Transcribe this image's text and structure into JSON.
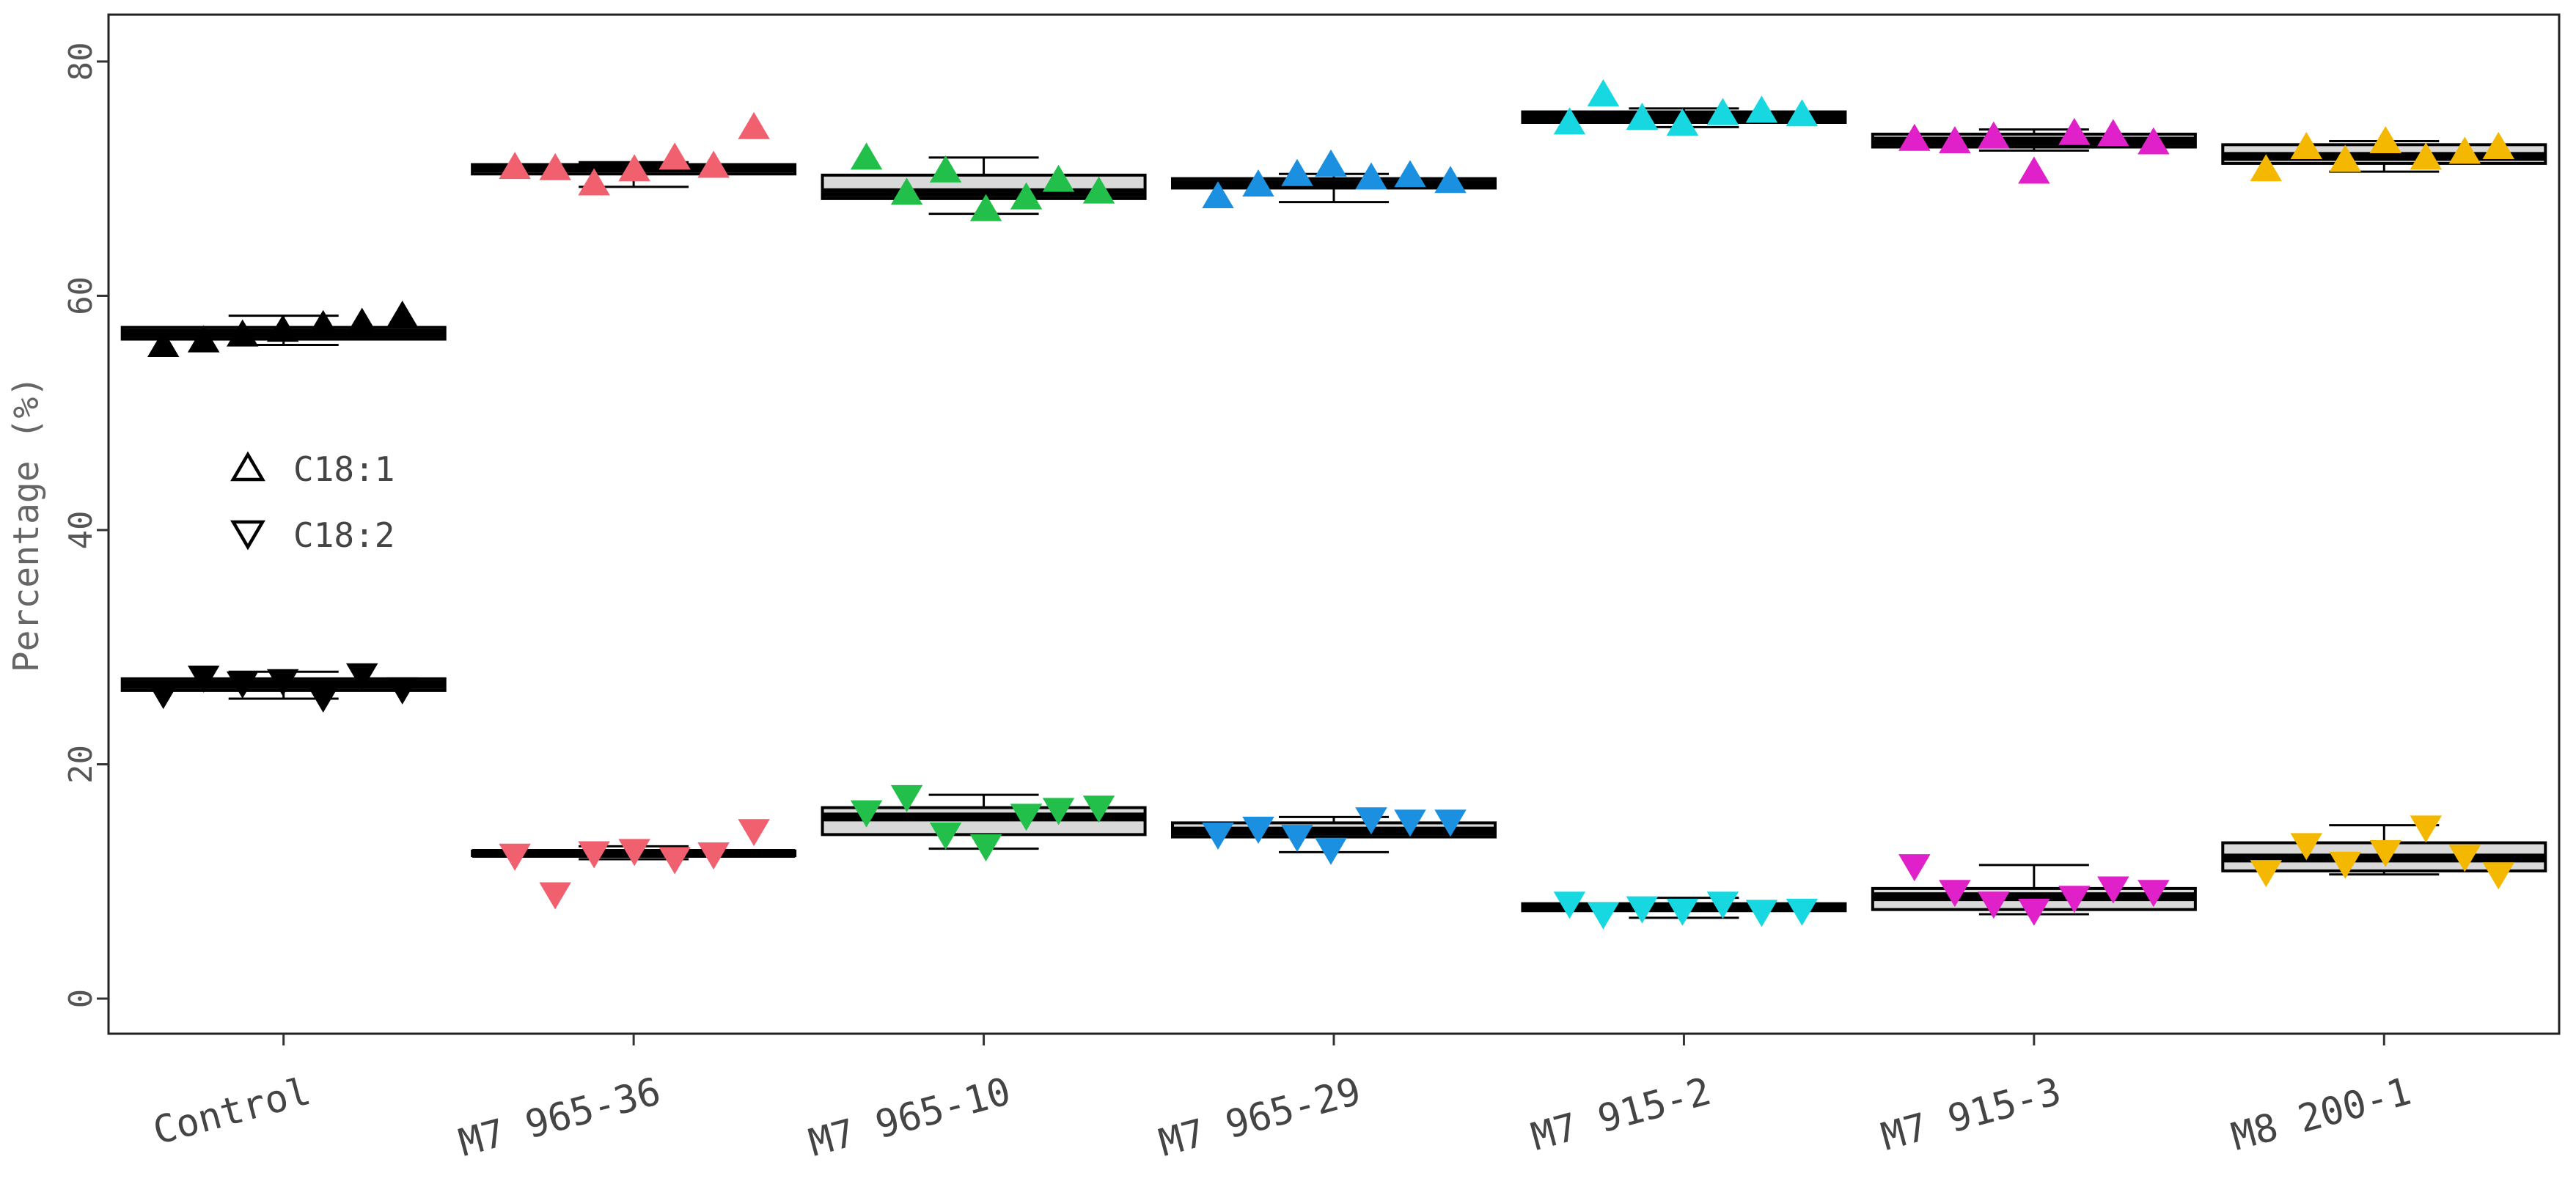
{
  "chart_data": {
    "type": "boxplot",
    "title": "",
    "xlabel": "",
    "ylabel": "Percentage (%)",
    "ylim": [
      -3,
      84
    ],
    "yticks": [
      0,
      20,
      40,
      60,
      80
    ],
    "y_tick_labels": [
      "0",
      "20",
      "40",
      "60",
      "80"
    ],
    "categories": [
      "Control",
      "M7 965-36",
      "M7 965-10",
      "M7 965-29",
      "M7 915-2",
      "M7 915-3",
      "M8 200-1"
    ],
    "category_colors": [
      "#000000",
      "#f0606e",
      "#22c04a",
      "#1b8fe0",
      "#17d8e0",
      "#e020c8",
      "#f5b800"
    ],
    "grid": false,
    "legend": {
      "position": "inside-left",
      "entries": [
        {
          "label": "C18:1",
          "marker": "triangle-up-open-icon"
        },
        {
          "label": "C18:2",
          "marker": "triangle-down-open-icon"
        }
      ]
    },
    "series": [
      {
        "name": "C18:1",
        "marker": "triangle-up",
        "boxes": [
          {
            "min": 55.8,
            "q1": 56.3,
            "median": 56.8,
            "q3": 57.3,
            "max": 58.3
          },
          {
            "min": 69.3,
            "q1": 70.4,
            "median": 70.9,
            "q3": 71.2,
            "max": 71.4
          },
          {
            "min": 67.0,
            "q1": 68.3,
            "median": 68.8,
            "q3": 70.3,
            "max": 71.8
          },
          {
            "min": 68.0,
            "q1": 69.2,
            "median": 69.5,
            "q3": 70.0,
            "max": 70.4
          },
          {
            "min": 74.4,
            "q1": 74.8,
            "median": 75.3,
            "q3": 75.7,
            "max": 76.0
          },
          {
            "min": 72.4,
            "q1": 72.7,
            "median": 73.2,
            "q3": 73.8,
            "max": 74.2
          },
          {
            "min": 70.6,
            "q1": 71.3,
            "median": 71.9,
            "q3": 72.9,
            "max": 73.2
          }
        ],
        "points": [
          [
            55.9,
            56.3,
            56.8,
            57.2,
            57.6,
            57.8,
            58.4
          ],
          [
            71.1,
            71.0,
            69.7,
            70.9,
            71.9,
            71.2,
            74.5
          ],
          [
            71.9,
            68.9,
            70.8,
            67.5,
            68.5,
            70.0,
            69.0
          ],
          [
            68.6,
            69.6,
            70.5,
            71.3,
            70.2,
            70.4,
            69.9
          ],
          [
            74.9,
            77.3,
            75.3,
            74.8,
            75.7,
            75.9,
            75.6
          ],
          [
            73.5,
            73.3,
            73.7,
            70.7,
            74.0,
            73.9,
            73.2
          ],
          [
            70.9,
            72.8,
            71.7,
            73.3,
            71.9,
            72.4,
            72.8
          ]
        ]
      },
      {
        "name": "C18:2",
        "marker": "triangle-down",
        "boxes": [
          {
            "min": 25.6,
            "q1": 26.3,
            "median": 26.8,
            "q3": 27.3,
            "max": 27.9
          },
          {
            "min": 11.9,
            "q1": 12.2,
            "median": 12.4,
            "q3": 12.6,
            "max": 13.0
          },
          {
            "min": 12.8,
            "q1": 14.0,
            "median": 15.5,
            "q3": 16.3,
            "max": 17.4
          },
          {
            "min": 12.5,
            "q1": 13.8,
            "median": 14.3,
            "q3": 15.0,
            "max": 15.5
          },
          {
            "min": 6.9,
            "q1": 7.5,
            "median": 7.8,
            "q3": 8.1,
            "max": 8.6
          },
          {
            "min": 7.2,
            "q1": 7.6,
            "median": 8.7,
            "q3": 9.4,
            "max": 11.4
          },
          {
            "min": 10.6,
            "q1": 10.9,
            "median": 12.0,
            "q3": 13.3,
            "max": 14.8
          }
        ],
        "points": [
          [
            25.9,
            27.3,
            26.8,
            27.0,
            25.6,
            27.5,
            26.3
          ],
          [
            12.1,
            8.8,
            12.3,
            12.5,
            11.8,
            12.2,
            14.2
          ],
          [
            15.8,
            17.1,
            13.9,
            12.9,
            15.5,
            16.0,
            16.2
          ],
          [
            13.9,
            14.4,
            13.7,
            12.6,
            15.2,
            15.0,
            15.0
          ],
          [
            8.0,
            7.1,
            7.6,
            7.4,
            8.0,
            7.3,
            7.4
          ],
          [
            11.2,
            9.0,
            8.0,
            7.4,
            8.5,
            9.3,
            9.0
          ],
          [
            10.7,
            13.0,
            11.4,
            12.4,
            14.5,
            12.0,
            10.5
          ]
        ]
      }
    ]
  }
}
